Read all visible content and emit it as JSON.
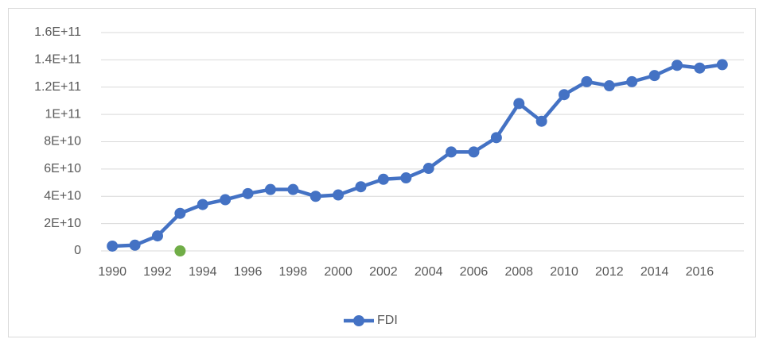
{
  "chart_data": {
    "type": "line",
    "x": [
      1990,
      1991,
      1992,
      1993,
      1994,
      1995,
      1996,
      1997,
      1998,
      1999,
      2000,
      2001,
      2002,
      2003,
      2004,
      2005,
      2006,
      2007,
      2008,
      2009,
      2010,
      2011,
      2012,
      2013,
      2014,
      2015,
      2016,
      2017
    ],
    "xlim": [
      1989.5,
      2017.5
    ],
    "xticks": [
      1990,
      1992,
      1994,
      1996,
      1998,
      2000,
      2002,
      2004,
      2006,
      2008,
      2010,
      2012,
      2014,
      2016
    ],
    "ylim": [
      0,
      160000000000
    ],
    "yticks": [
      0,
      {
        "value": 20000000000,
        "label": "2E+10"
      },
      {
        "value": 40000000000,
        "label": "4E+10"
      },
      {
        "value": 60000000000,
        "label": "6E+10"
      },
      {
        "value": 80000000000,
        "label": "8E+10"
      },
      {
        "value": 100000000000,
        "label": "1E+11"
      },
      {
        "value": 120000000000,
        "label": "1.2E+11"
      },
      {
        "value": 140000000000,
        "label": "1.4E+11"
      },
      {
        "value": 160000000000,
        "label": "1.6E+11"
      }
    ],
    "grid": true,
    "legend": "bottom",
    "series": [
      {
        "name": "FDI",
        "color": "#4472c4",
        "values": [
          3500000000,
          4200000000,
          11000000000,
          27500000000,
          34000000000,
          37500000000,
          42000000000,
          45000000000,
          45000000000,
          40000000000,
          41000000000,
          47000000000,
          52500000000,
          53500000000,
          60500000000,
          72500000000,
          72500000000,
          83000000000,
          108000000000,
          95000000000,
          114500000000,
          124000000000,
          121000000000,
          124000000000,
          128500000000,
          136000000000,
          134000000000,
          136500000000
        ]
      },
      {
        "color": "#70ad47",
        "values": [
          null,
          null,
          null,
          0,
          null,
          null,
          null,
          null,
          null,
          null,
          null,
          null,
          null,
          null,
          null,
          null,
          null,
          null,
          null,
          null,
          null,
          null,
          null,
          null,
          null,
          null,
          null,
          null
        ]
      }
    ]
  }
}
